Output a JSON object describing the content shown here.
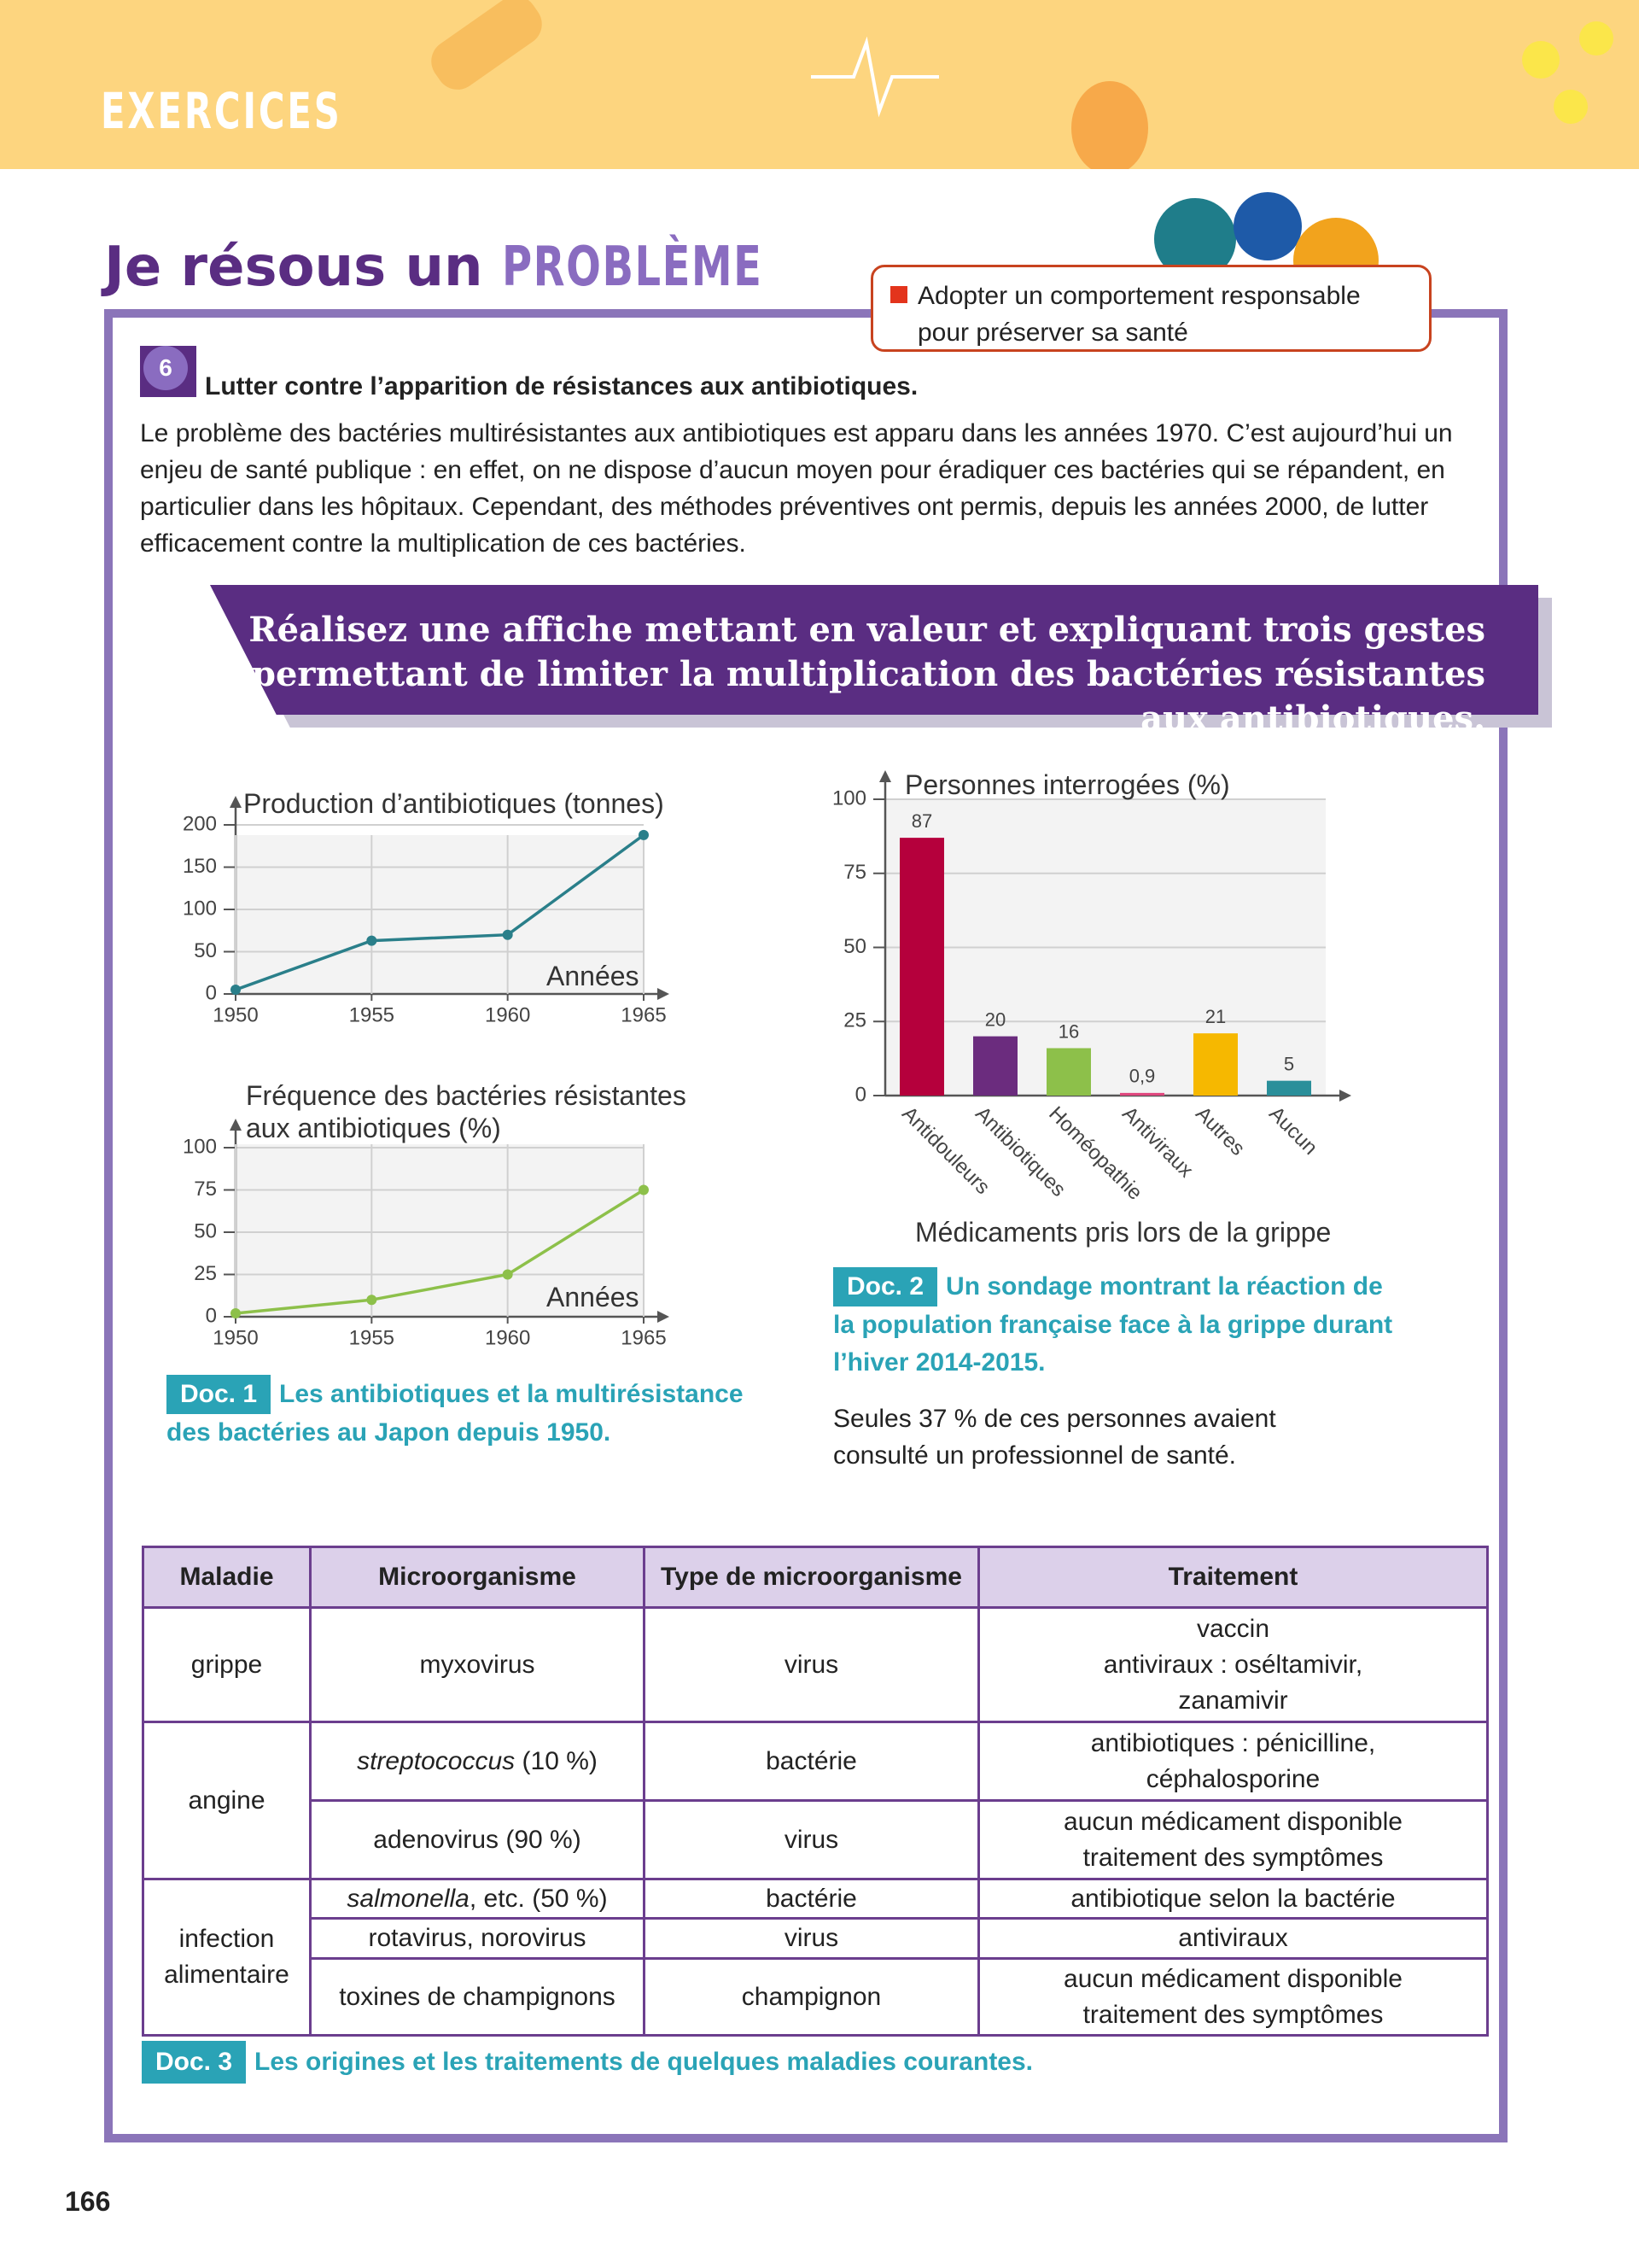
{
  "header": {
    "label": "EXERCICES"
  },
  "section": {
    "title": "Je résous un",
    "title_big": "PROBLÈME",
    "badge": "Adopter un comportement responsable pour préserver sa santé"
  },
  "exercise": {
    "number": "6",
    "heading": "Lutter contre l’apparition de résistances aux antibiotiques.",
    "text": "Le problème des bactéries multirésistantes aux antibiotiques est apparu dans les années 1970. C’est aujourd’hui un enjeu de santé publique : en effet, on ne dispose d’aucun moyen pour éradiquer ces bactéries qui se répandent, en particulier dans les hôpitaux. Cependant, des méthodes préventives ont permis, depuis les années 2000, de lutter efficacement contre la multiplication de ces bactéries.",
    "task": "Réalisez une affiche mettant en valeur et expliquant trois gestes permettant de limiter la multiplication des bactéries résistantes aux antibiotiques."
  },
  "chart_data": [
    {
      "type": "line",
      "y_label": "Production d’antibiotiques (tonnes)",
      "x_label": "Années",
      "x": [
        1950,
        1955,
        1960,
        1965
      ],
      "values": [
        5,
        63,
        70,
        188
      ],
      "color": "#2a7f8a",
      "xlim": [
        1950,
        1965
      ],
      "xticks": [
        1950,
        1955,
        1960,
        1965
      ],
      "ylim": [
        0,
        200
      ],
      "yticks": [
        0,
        50,
        100,
        150,
        200
      ],
      "grid": true
    },
    {
      "type": "line",
      "y_label": "Fréquence des bactéries résistantes aux antibiotiques (%)",
      "x_label": "Années",
      "x": [
        1950,
        1955,
        1960,
        1965
      ],
      "values": [
        2,
        10,
        25,
        75
      ],
      "color": "#8dc04a",
      "xlim": [
        1950,
        1965
      ],
      "xticks": [
        1950,
        1955,
        1960,
        1965
      ],
      "ylim": [
        0,
        100
      ],
      "yticks": [
        0,
        25,
        50,
        75,
        100
      ],
      "grid": true
    },
    {
      "type": "bar",
      "y_label": "Personnes interrogées (%)",
      "x_label": "Médicaments pris lors de la grippe",
      "categories": [
        "Antidouleurs",
        "Antibiotiques",
        "Homéopathie",
        "Antiviraux",
        "Autres",
        "Aucun"
      ],
      "values": [
        87,
        20,
        16,
        0.9,
        21,
        5
      ],
      "value_labels": [
        "87",
        "20",
        "16",
        "0,9",
        "21",
        "5"
      ],
      "colors": [
        "#b5003c",
        "#6b2c7e",
        "#8dc04a",
        "#e0477e",
        "#f6b800",
        "#2a8f9a"
      ],
      "ylim": [
        0,
        100
      ],
      "yticks": [
        0,
        25,
        50,
        75,
        100
      ],
      "grid": true
    }
  ],
  "docs": [
    {
      "label": "Doc. 1",
      "caption": "Les antibiotiques et la multirésistance des bactéries au Japon depuis 1950."
    },
    {
      "label": "Doc. 2",
      "caption": "Un sondage montrant la réaction de la population française face à la grippe durant l’hiver 2014-2015.",
      "note": "Seules 37 % de ces personnes avaient consulté un professionnel de santé."
    },
    {
      "label": "Doc. 3",
      "caption": "Les origines et les traitements de quelques maladies courantes."
    }
  ],
  "table": {
    "header": [
      "Maladie",
      "Microorganisme",
      "Type de microorganisme",
      "Traitement"
    ],
    "rows": [
      [
        "grippe",
        "myxovirus",
        "virus",
        [
          "vaccin",
          "antiviraux : oséltamivir, zanamivir"
        ]
      ],
      [
        "angine",
        [
          "streptococcus",
          "(10 %)"
        ],
        "bactérie",
        "antibiotiques : pénicilline, céphalosporine"
      ],
      [
        "adenovirus (90 %)",
        "virus",
        [
          "aucun médicament disponible",
          "traitement des symptômes"
        ]
      ],
      [
        "infection alimentaire",
        [
          "salmonella",
          ", etc. (50 %)"
        ],
        "bactérie",
        "antibiotique selon la bactérie"
      ],
      [
        "rotavirus, norovirus",
        "virus",
        "antiviraux"
      ],
      [
        "toxines de champignons",
        "champignon",
        [
          "aucun médicament disponible",
          "traitement des symptômes"
        ]
      ]
    ]
  },
  "page_number": "166"
}
